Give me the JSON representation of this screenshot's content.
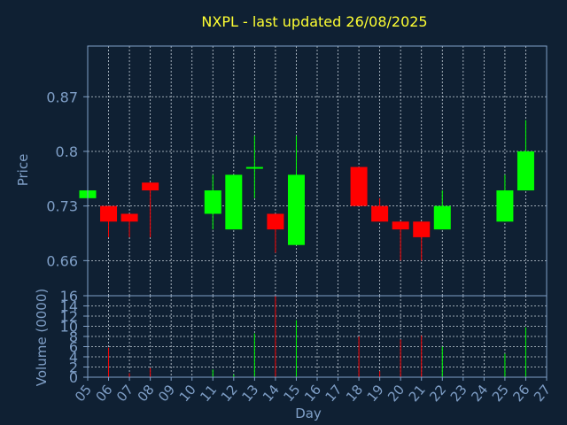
{
  "chart_data": [
    {
      "type": "candlestick",
      "title": "NXPL - last updated 26/08/2025",
      "ylabel": "Price",
      "ylim": [
        0.615,
        0.935
      ],
      "yticks": [
        "0.66",
        "0.73",
        "0.8",
        "0.87"
      ],
      "ytick_values": [
        0.66,
        0.73,
        0.8,
        0.87
      ],
      "grid": true,
      "colors": {
        "up": "#00ff00",
        "down": "#ff0000",
        "background": "#0f2033",
        "axis": "#7f9fc7",
        "title": "#ffff33"
      },
      "candles": [
        {
          "day": 5,
          "open": 0.74,
          "close": 0.75,
          "high": 0.75,
          "low": 0.74
        },
        {
          "day": 6,
          "open": 0.73,
          "close": 0.71,
          "high": 0.73,
          "low": 0.69
        },
        {
          "day": 7,
          "open": 0.72,
          "close": 0.71,
          "high": 0.72,
          "low": 0.69
        },
        {
          "day": 8,
          "open": 0.76,
          "close": 0.75,
          "high": 0.76,
          "low": 0.69
        },
        {
          "day": 11,
          "open": 0.72,
          "close": 0.75,
          "high": 0.77,
          "low": 0.7
        },
        {
          "day": 12,
          "open": 0.7,
          "close": 0.77,
          "high": 0.77,
          "low": 0.7
        },
        {
          "day": 13,
          "open": 0.78,
          "close": 0.78,
          "high": 0.82,
          "low": 0.74
        },
        {
          "day": 14,
          "open": 0.72,
          "close": 0.7,
          "high": 0.72,
          "low": 0.67
        },
        {
          "day": 15,
          "open": 0.68,
          "close": 0.77,
          "high": 0.82,
          "low": 0.68
        },
        {
          "day": 18,
          "open": 0.78,
          "close": 0.73,
          "high": 0.78,
          "low": 0.73
        },
        {
          "day": 19,
          "open": 0.73,
          "close": 0.71,
          "high": 0.74,
          "low": 0.71
        },
        {
          "day": 20,
          "open": 0.71,
          "close": 0.7,
          "high": 0.71,
          "low": 0.66
        },
        {
          "day": 21,
          "open": 0.71,
          "close": 0.69,
          "high": 0.71,
          "low": 0.66
        },
        {
          "day": 22,
          "open": 0.7,
          "close": 0.73,
          "high": 0.75,
          "low": 0.7
        },
        {
          "day": 25,
          "open": 0.71,
          "close": 0.75,
          "high": 0.77,
          "low": 0.71
        },
        {
          "day": 26,
          "open": 0.75,
          "close": 0.8,
          "high": 0.84,
          "low": 0.75
        }
      ]
    },
    {
      "type": "bar",
      "xlabel": "Day",
      "ylabel": "Volume (0000)",
      "ylim": [
        0,
        16
      ],
      "yticks": [
        "0",
        "2",
        "4",
        "6",
        "8",
        "10",
        "12",
        "14",
        "16"
      ],
      "ytick_values": [
        0,
        2,
        4,
        6,
        8,
        10,
        12,
        14,
        16
      ],
      "xticks": [
        "05",
        "06",
        "07",
        "08",
        "09",
        "10",
        "11",
        "12",
        "13",
        "14",
        "15",
        "16",
        "17",
        "18",
        "19",
        "20",
        "21",
        "22",
        "23",
        "24",
        "25",
        "26",
        "27"
      ],
      "xlim": [
        5,
        27
      ],
      "bars": [
        {
          "day": 5,
          "value": 0.3,
          "color": "#00ff00"
        },
        {
          "day": 6,
          "value": 5.8,
          "color": "#ff0000"
        },
        {
          "day": 7,
          "value": 0.8,
          "color": "#ff0000"
        },
        {
          "day": 8,
          "value": 1.8,
          "color": "#ff0000"
        },
        {
          "day": 11,
          "value": 1.5,
          "color": "#00ff00"
        },
        {
          "day": 12,
          "value": 0.5,
          "color": "#00ff00"
        },
        {
          "day": 13,
          "value": 8.6,
          "color": "#00ff00"
        },
        {
          "day": 14,
          "value": 16.0,
          "color": "#ff0000"
        },
        {
          "day": 15,
          "value": 11.2,
          "color": "#00ff00"
        },
        {
          "day": 18,
          "value": 8.0,
          "color": "#ff0000"
        },
        {
          "day": 19,
          "value": 1.2,
          "color": "#ff0000"
        },
        {
          "day": 20,
          "value": 7.4,
          "color": "#ff0000"
        },
        {
          "day": 21,
          "value": 8.2,
          "color": "#ff0000"
        },
        {
          "day": 22,
          "value": 6.0,
          "color": "#00ff00"
        },
        {
          "day": 25,
          "value": 4.6,
          "color": "#00ff00"
        },
        {
          "day": 26,
          "value": 9.8,
          "color": "#00ff00"
        }
      ]
    }
  ]
}
